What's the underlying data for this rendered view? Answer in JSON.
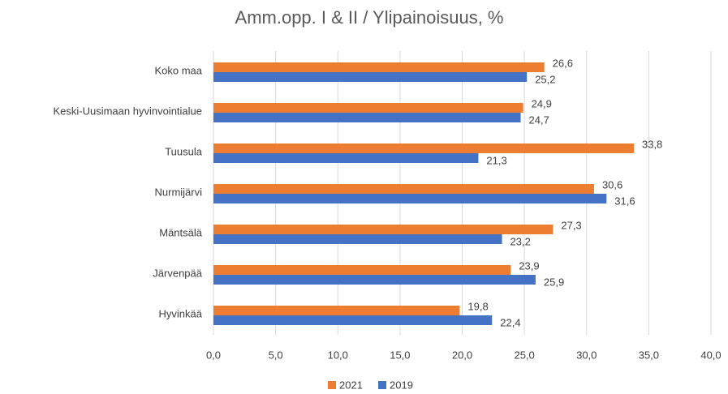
{
  "chart_data": {
    "type": "hbar",
    "title": "Amm.opp. I & II / Ylipainoisuus, %",
    "categories": [
      "Koko maa",
      "Keski-Uusimaan hyvinvointialue",
      "Tuusula",
      "Nurmijärvi",
      "Mäntsälä",
      "Järvenpää",
      "Hyvinkää"
    ],
    "series": [
      {
        "name": "2021",
        "color": "#ed7d31",
        "values": [
          26.6,
          24.9,
          33.8,
          30.6,
          27.3,
          23.9,
          19.8
        ],
        "value_labels": [
          "26,6",
          "24,9",
          "33,8",
          "30,6",
          "27,3",
          "23,9",
          "19,8"
        ]
      },
      {
        "name": "2019",
        "color": "#4472c4",
        "values": [
          25.2,
          24.7,
          21.3,
          31.6,
          23.2,
          25.9,
          22.4
        ],
        "value_labels": [
          "25,2",
          "24,7",
          "21,3",
          "31,6",
          "23,2",
          "25,9",
          "22,4"
        ]
      }
    ],
    "xlim": [
      0,
      40
    ],
    "xticks": [
      {
        "value": 0,
        "label": "0,0"
      },
      {
        "value": 5,
        "label": "5,0"
      },
      {
        "value": 10,
        "label": "10,0"
      },
      {
        "value": 15,
        "label": "15,0"
      },
      {
        "value": 20,
        "label": "20,0"
      },
      {
        "value": 25,
        "label": "25,0"
      },
      {
        "value": 30,
        "label": "30,0"
      },
      {
        "value": 35,
        "label": "35,0"
      },
      {
        "value": 40,
        "label": "40,0"
      }
    ],
    "grid": true,
    "legend": "bottom"
  }
}
